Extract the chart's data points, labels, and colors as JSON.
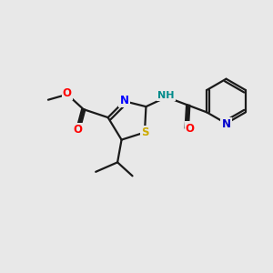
{
  "background_color": "#e8e8e8",
  "bond_color": "#1a1a1a",
  "N_color": "#0000ff",
  "S_color": "#ccaa00",
  "O_color": "#ff0000",
  "NH_color": "#008b8b",
  "pyridine_N_color": "#0000cc",
  "line_width": 1.6,
  "figsize": [
    3.0,
    3.0
  ],
  "dpi": 100,
  "xlim": [
    0,
    10
  ],
  "ylim": [
    0,
    10
  ]
}
